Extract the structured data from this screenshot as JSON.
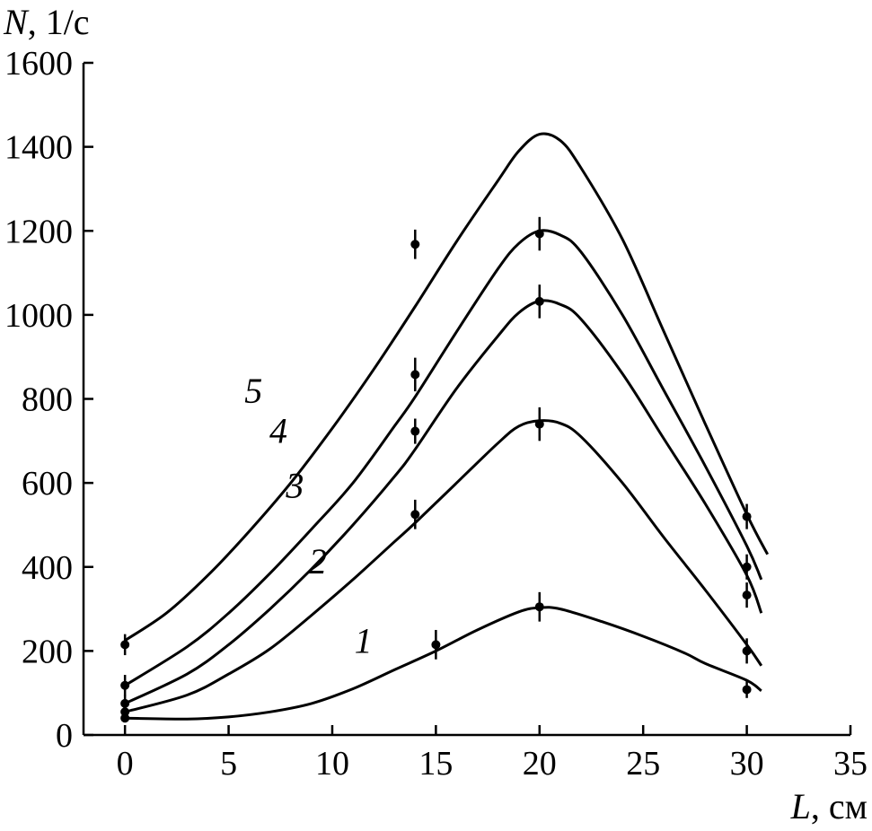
{
  "chart_data": {
    "type": "line",
    "title": "",
    "xlabel": {
      "symbol": "L",
      "unit": ", см"
    },
    "ylabel": {
      "symbol": "N",
      "unit": ", 1/с"
    },
    "xlim": [
      -2,
      35
    ],
    "ylim": [
      0,
      1600
    ],
    "x_ticks": [
      0,
      5,
      10,
      15,
      20,
      25,
      30,
      35
    ],
    "y_ticks": [
      0,
      200,
      400,
      600,
      800,
      1000,
      1200,
      1400,
      1600
    ],
    "grid": false,
    "legend": "none",
    "series": [
      {
        "name": "1",
        "label_at": [
          11.5,
          195
        ],
        "points": [
          {
            "x": 0,
            "y": 40,
            "err": 0
          },
          {
            "x": 15,
            "y": 215,
            "err": 35
          },
          {
            "x": 20,
            "y": 305,
            "err": 35
          },
          {
            "x": 30,
            "y": 108,
            "err": 20
          }
        ],
        "curve": [
          [
            0,
            40
          ],
          [
            3,
            38
          ],
          [
            5,
            43
          ],
          [
            7,
            55
          ],
          [
            9,
            75
          ],
          [
            11,
            110
          ],
          [
            13,
            155
          ],
          [
            15,
            200
          ],
          [
            17,
            250
          ],
          [
            19,
            293
          ],
          [
            20,
            303
          ],
          [
            21,
            300
          ],
          [
            23,
            270
          ],
          [
            25,
            235
          ],
          [
            27,
            195
          ],
          [
            28,
            170
          ],
          [
            30,
            130
          ],
          [
            30.7,
            105
          ]
        ]
      },
      {
        "name": "2",
        "label_at": [
          9.3,
          385
        ],
        "points": [
          {
            "x": 0,
            "y": 55,
            "err": 0
          },
          {
            "x": 14,
            "y": 525,
            "err": 35
          },
          {
            "x": 20,
            "y": 740,
            "err": 40
          },
          {
            "x": 30,
            "y": 200,
            "err": 30
          }
        ],
        "curve": [
          [
            0,
            55
          ],
          [
            3,
            95
          ],
          [
            5,
            145
          ],
          [
            7,
            205
          ],
          [
            9,
            285
          ],
          [
            11,
            370
          ],
          [
            13,
            460
          ],
          [
            14,
            505
          ],
          [
            16,
            600
          ],
          [
            18,
            695
          ],
          [
            19,
            735
          ],
          [
            20,
            748
          ],
          [
            21,
            742
          ],
          [
            22,
            710
          ],
          [
            24,
            600
          ],
          [
            26,
            470
          ],
          [
            28,
            345
          ],
          [
            30,
            215
          ],
          [
            30.7,
            165
          ]
        ]
      },
      {
        "name": "3",
        "label_at": [
          8.2,
          565
        ],
        "points": [
          {
            "x": 0,
            "y": 75,
            "err": 20
          },
          {
            "x": 14,
            "y": 723,
            "err": 30
          },
          {
            "x": 20,
            "y": 1032,
            "err": 40
          },
          {
            "x": 30,
            "y": 333,
            "err": 30
          }
        ],
        "curve": [
          [
            0,
            75
          ],
          [
            3,
            145
          ],
          [
            5,
            215
          ],
          [
            7,
            300
          ],
          [
            9,
            395
          ],
          [
            11,
            500
          ],
          [
            13,
            615
          ],
          [
            14,
            680
          ],
          [
            16,
            825
          ],
          [
            18,
            950
          ],
          [
            19,
            1005
          ],
          [
            20,
            1033
          ],
          [
            21,
            1025
          ],
          [
            22,
            990
          ],
          [
            24,
            860
          ],
          [
            26,
            705
          ],
          [
            28,
            550
          ],
          [
            30,
            380
          ],
          [
            30.7,
            290
          ]
        ]
      },
      {
        "name": "4",
        "label_at": [
          7.4,
          695
        ],
        "points": [
          {
            "x": 0,
            "y": 118,
            "err": 25
          },
          {
            "x": 14,
            "y": 858,
            "err": 40
          },
          {
            "x": 20,
            "y": 1193,
            "err": 40
          },
          {
            "x": 30,
            "y": 400,
            "err": 30
          }
        ],
        "curve": [
          [
            0,
            118
          ],
          [
            3,
            210
          ],
          [
            5,
            290
          ],
          [
            7,
            385
          ],
          [
            9,
            490
          ],
          [
            11,
            600
          ],
          [
            13,
            735
          ],
          [
            14,
            805
          ],
          [
            16,
            960
          ],
          [
            18,
            1110
          ],
          [
            19,
            1170
          ],
          [
            20,
            1200
          ],
          [
            21,
            1190
          ],
          [
            22,
            1150
          ],
          [
            24,
            1000
          ],
          [
            26,
            820
          ],
          [
            28,
            640
          ],
          [
            30,
            450
          ],
          [
            30.7,
            370
          ]
        ]
      },
      {
        "name": "5",
        "label_at": [
          6.2,
          790
        ],
        "points": [
          {
            "x": 0,
            "y": 215,
            "err": 25
          },
          {
            "x": 14,
            "y": 1168,
            "err": 35
          },
          {
            "x": 30,
            "y": 520,
            "err": 30
          }
        ],
        "curve": [
          [
            0,
            225
          ],
          [
            2,
            290
          ],
          [
            4,
            380
          ],
          [
            6,
            485
          ],
          [
            8,
            600
          ],
          [
            10,
            730
          ],
          [
            12,
            870
          ],
          [
            14,
            1020
          ],
          [
            16,
            1175
          ],
          [
            18,
            1320
          ],
          [
            19,
            1390
          ],
          [
            20,
            1430
          ],
          [
            21,
            1415
          ],
          [
            22,
            1350
          ],
          [
            24,
            1180
          ],
          [
            26,
            960
          ],
          [
            28,
            740
          ],
          [
            30,
            525
          ],
          [
            31,
            430
          ]
        ]
      }
    ]
  }
}
